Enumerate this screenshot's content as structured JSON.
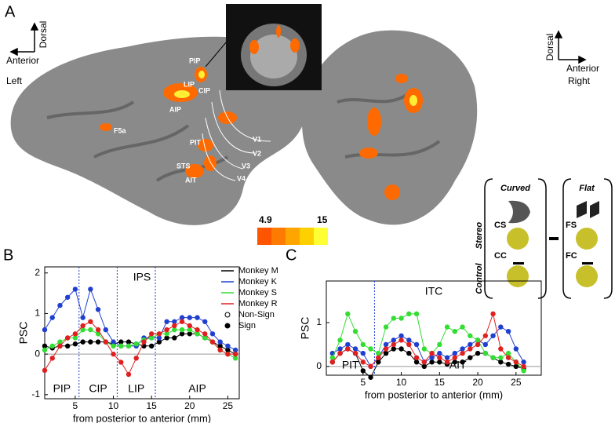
{
  "panel_letters": [
    "A",
    "B",
    "C"
  ],
  "panel_a": {
    "left": {
      "up": "Dorsal",
      "side": "Anterior",
      "hemisphere": "Left"
    },
    "right": {
      "up": "Dorsal",
      "side": "Anterior",
      "hemisphere": "Right"
    },
    "areas": [
      "PIP",
      "LIP",
      "CIP",
      "AIP",
      "F5a",
      "PIT",
      "STS",
      "AIT",
      "V1",
      "V2",
      "V3",
      "V4"
    ],
    "colorbar": {
      "min": 4.9,
      "max": 15
    }
  },
  "stimuli": {
    "curved": "Curved",
    "flat": "Flat",
    "stereo": "Stereo",
    "control": "Control",
    "cells": [
      "CS",
      "CC",
      "FS",
      "FC"
    ]
  },
  "chart_data": [
    {
      "type": "line",
      "title": "IPS",
      "y_label": "PSC",
      "x_label": "from posterior to anterior (mm)",
      "x": [
        1,
        2,
        3,
        4,
        5,
        6,
        7,
        8,
        9,
        10,
        11,
        12,
        13,
        14,
        15,
        16,
        17,
        18,
        19,
        20,
        21,
        22,
        23,
        24,
        25,
        26
      ],
      "series": [
        {
          "name": "Monkey M",
          "color": "#000000",
          "values": [
            0.2,
            0.15,
            0.2,
            0.2,
            0.25,
            0.3,
            0.3,
            0.3,
            0.3,
            0.25,
            0.3,
            0.3,
            0.25,
            0.2,
            0.2,
            0.3,
            0.4,
            0.4,
            0.5,
            0.5,
            0.5,
            0.4,
            0.3,
            0.2,
            0.1,
            0.0
          ]
        },
        {
          "name": "Monkey K",
          "color": "#1f3fd0",
          "values": [
            0.6,
            0.9,
            1.2,
            1.4,
            1.6,
            0.9,
            1.6,
            1.1,
            0.6,
            0.3,
            0.2,
            0.2,
            0.2,
            0.4,
            0.4,
            0.4,
            0.8,
            0.8,
            0.9,
            0.9,
            0.9,
            0.8,
            0.5,
            0.3,
            0.2,
            0.1
          ]
        },
        {
          "name": "Monkey S",
          "color": "#33dd33",
          "values": [
            0.1,
            0.2,
            0.3,
            0.4,
            0.4,
            0.6,
            0.6,
            0.5,
            0.3,
            0.2,
            0.2,
            0.2,
            0.25,
            0.35,
            0.4,
            0.5,
            0.5,
            0.6,
            0.6,
            0.6,
            0.5,
            0.4,
            0.3,
            0.1,
            0.0,
            -0.1
          ]
        },
        {
          "name": "Monkey R",
          "color": "#e02020",
          "values": [
            -0.4,
            -0.1,
            0.2,
            0.4,
            0.5,
            0.7,
            0.8,
            0.6,
            0.3,
            0.0,
            -0.2,
            -0.5,
            -0.1,
            0.3,
            0.5,
            0.5,
            0.6,
            0.7,
            0.8,
            0.7,
            0.6,
            0.5,
            0.3,
            0.1,
            0.0,
            0.0
          ]
        }
      ],
      "marker_legend": [
        "Non-Sign",
        "Sign"
      ],
      "separators": [
        5.5,
        10.5,
        15.5
      ],
      "region_labels": [
        "PIP",
        "CIP",
        "LIP",
        "AIP"
      ],
      "xlim": [
        1,
        26.5
      ],
      "ylim": [
        -1.1,
        2.15
      ],
      "xticks": [
        5,
        10,
        15,
        20,
        25
      ],
      "yticks": [
        -1,
        0,
        1,
        2
      ]
    },
    {
      "type": "line",
      "title": "ITC",
      "y_label": "PSC",
      "x_label": "from posterior to anterior (mm)",
      "x": [
        1,
        2,
        3,
        4,
        5,
        6,
        7,
        8,
        9,
        10,
        11,
        12,
        13,
        14,
        15,
        16,
        17,
        18,
        19,
        20,
        21,
        22,
        23,
        24,
        25,
        26
      ],
      "series": [
        {
          "color": "#000000",
          "values": [
            0.1,
            0.3,
            0.4,
            0.3,
            -0.1,
            -0.25,
            0.1,
            0.3,
            0.4,
            0.4,
            0.3,
            0.1,
            0.0,
            0.1,
            0.1,
            0.05,
            0.1,
            0.1,
            0.2,
            0.3,
            0.3,
            0.2,
            0.1,
            0.05,
            0.0,
            -0.05
          ]
        },
        {
          "color": "#1f3fd0",
          "values": [
            0.3,
            0.4,
            0.5,
            0.4,
            0.3,
            0.0,
            0.2,
            0.5,
            0.6,
            0.7,
            0.6,
            0.5,
            0.1,
            0.2,
            0.3,
            0.2,
            0.3,
            0.4,
            0.5,
            0.6,
            0.5,
            0.7,
            0.9,
            0.8,
            0.4,
            0.1
          ]
        },
        {
          "color": "#33dd33",
          "values": [
            0.2,
            0.6,
            1.2,
            0.8,
            0.5,
            0.4,
            0.3,
            0.9,
            1.1,
            1.1,
            1.2,
            1.2,
            0.4,
            0.3,
            0.5,
            0.9,
            0.8,
            0.9,
            0.7,
            0.6,
            0.3,
            0.2,
            0.2,
            0.3,
            0.1,
            -0.1
          ]
        },
        {
          "color": "#e02020",
          "values": [
            0.1,
            0.3,
            0.4,
            0.3,
            0.1,
            0.0,
            0.2,
            0.4,
            0.5,
            0.6,
            0.5,
            0.2,
            0.1,
            0.3,
            0.2,
            0.1,
            0.2,
            0.3,
            0.4,
            0.5,
            0.7,
            1.2,
            0.4,
            0.2,
            0.1,
            0.0
          ]
        }
      ],
      "separators": [
        6.5
      ],
      "region_labels": [
        "PIT",
        "AIT"
      ],
      "xlim": [
        0.2,
        28.3
      ],
      "ylim": [
        -0.2,
        1.95
      ],
      "xticks": [
        5,
        10,
        15,
        20,
        25
      ],
      "yticks": [
        0,
        1
      ]
    }
  ]
}
